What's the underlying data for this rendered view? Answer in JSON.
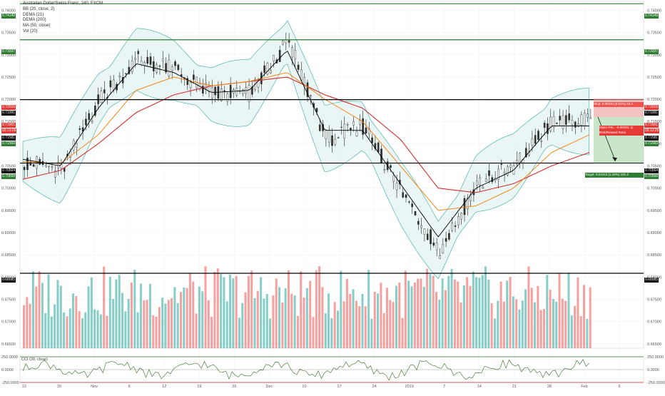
{
  "legend": {
    "title": "Australian Dollar/Swiss Franc, 240, FXCM",
    "bb": "BB (20, close, 2)",
    "dema1": "DEMA (21)",
    "dema2": "DEMA (200)",
    "ma": "MA (50, close)",
    "vol": "Vol (20)"
  },
  "cci_label": "CCI (20, close)",
  "right_axis_ticks": [
    "0.74000",
    "0.73500",
    "0.73000",
    "0.72500",
    "0.72000",
    "0.71500",
    "0.71000",
    "0.70500",
    "0.70000",
    "0.69500",
    "0.69000",
    "0.68500",
    "0.68000",
    "0.67500",
    "0.67000",
    "0.66500"
  ],
  "cci_ticks": [
    "250.0000",
    "0.0000",
    "-250.0000"
  ],
  "x_ticks": [
    "22",
    "29",
    "Nov",
    "6",
    "12",
    "19",
    "26",
    "Dec",
    "10",
    "17",
    "24",
    "2019",
    "7",
    "14",
    "21",
    "28",
    "Feb",
    "6"
  ],
  "levels": [
    {
      "value": "0.74149",
      "color": "#2e7d32"
    },
    {
      "value": "0.73337",
      "color": "#2e7d32"
    },
    {
      "value": "0.71991",
      "color": "#000000"
    },
    {
      "value": "0.70564",
      "color": "#000000"
    },
    {
      "value": "0.68085",
      "color": "#000000"
    }
  ],
  "left_tags": [
    {
      "value": "0.74149",
      "color": "#2e7d32"
    },
    {
      "value": "0.73337",
      "color": "#2e7d32"
    },
    {
      "value": "0.72015",
      "color": "#e53935"
    },
    {
      "value": "0.71991",
      "color": "#000000"
    },
    {
      "value": "0.71601",
      "color": "#e53935"
    },
    {
      "value": "05:13:26",
      "color": "#e53935"
    },
    {
      "value": "0.71581",
      "color": "#000000"
    },
    {
      "value": "0.71569",
      "color": "#2e7d32"
    },
    {
      "value": "0.70564",
      "color": "#000000"
    },
    {
      "value": "0.70568",
      "color": "#2e7d32"
    },
    {
      "value": "0.68085",
      "color": "#000000"
    }
  ],
  "right_tags": [
    {
      "value": "0.74149",
      "color": "#2e7d32"
    },
    {
      "value": "0.73337",
      "color": "#2e7d32"
    },
    {
      "value": "0.72015",
      "color": "#e53935"
    },
    {
      "value": "0.71991",
      "color": "#000000"
    },
    {
      "value": "0.71601",
      "color": "#e53935"
    },
    {
      "value": "05:13:26",
      "color": "#e53935"
    },
    {
      "value": "0.71581",
      "color": "#000000"
    },
    {
      "value": "0.71569",
      "color": "#2e7d32"
    },
    {
      "value": "0.70564",
      "color": "#000000"
    },
    {
      "value": "0.70568",
      "color": "#2e7d32"
    },
    {
      "value": "0.68085",
      "color": "#000000"
    }
  ],
  "trade": {
    "stop_text": "Stop: 0.00434 (0.61%) 43.4",
    "open_pl_text": "Open P&L: -0.00020, Q",
    "rr_text": "Risk/Reward Ratio",
    "target_text": "Target: 0.01013 (1.42%) 101.3"
  },
  "colors": {
    "up": "#26a69a",
    "down": "#ef5350",
    "bb_fill": "#e0f2f1",
    "bb_line": "#4db6ac",
    "dema21": "#000000",
    "dema200": "#d32f2f",
    "ma50": "#f57c00",
    "cci_line": "#33691e"
  },
  "chart_data": {
    "type": "line",
    "title": "Australian Dollar/Swiss Franc, 240, FXCM",
    "ylim": [
      0.664,
      0.742
    ],
    "x": [
      "22",
      "29",
      "Nov",
      "6",
      "12",
      "19",
      "26",
      "Dec",
      "10",
      "17",
      "24",
      "2019",
      "7",
      "14",
      "21",
      "28"
    ],
    "series": [
      {
        "name": "Australian Dollar/Swiss Franc",
        "values": [
          0.706,
          0.704,
          0.72,
          0.729,
          0.7265,
          0.721,
          0.7215,
          0.733,
          0.711,
          0.714,
          0.699,
          0.686,
          0.701,
          0.705,
          0.715,
          0.715
        ]
      },
      {
        "name": "DEMA (21)",
        "values": [
          0.7065,
          0.705,
          0.718,
          0.728,
          0.726,
          0.7215,
          0.722,
          0.731,
          0.713,
          0.713,
          0.701,
          0.689,
          0.7,
          0.704,
          0.714,
          0.714
        ]
      },
      {
        "name": "DEMA (200)",
        "values": [
          0.702,
          0.704,
          0.71,
          0.717,
          0.721,
          0.723,
          0.724,
          0.725,
          0.721,
          0.718,
          0.711,
          0.7,
          0.699,
          0.701,
          0.705,
          0.708
        ]
      },
      {
        "name": "MA (50, close)",
        "values": [
          0.706,
          0.7055,
          0.712,
          0.722,
          0.725,
          0.723,
          0.724,
          0.726,
          0.72,
          0.715,
          0.705,
          0.695,
          0.696,
          0.7,
          0.708,
          0.712
        ]
      }
    ]
  }
}
